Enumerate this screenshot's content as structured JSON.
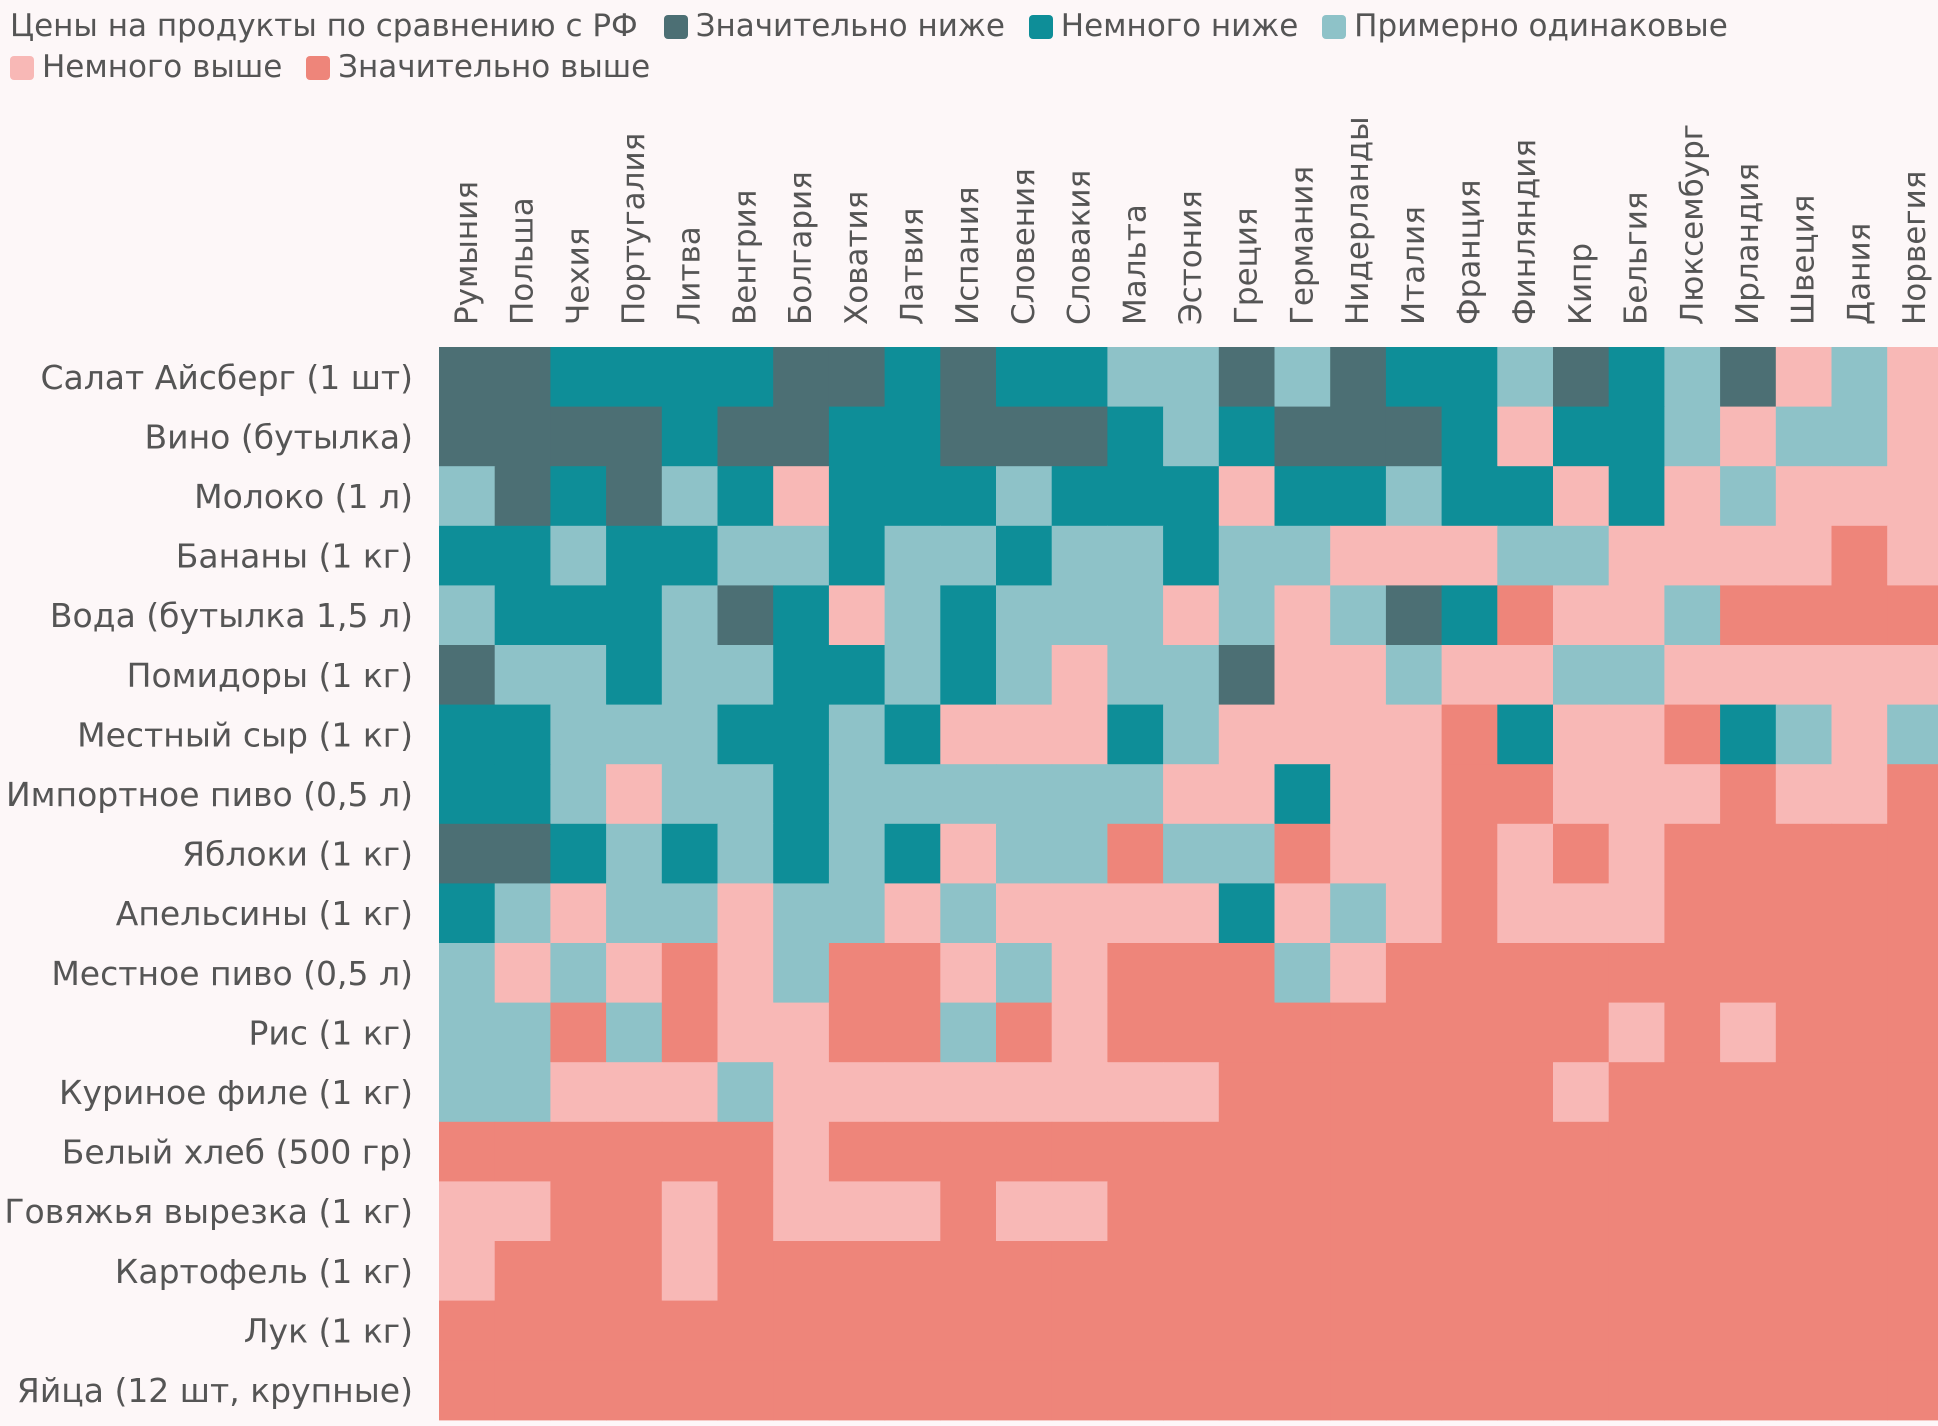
{
  "chart_data": {
    "type": "heatmap",
    "title": "Цены на продукты по сравнению с РФ",
    "legend": [
      {
        "level": 0,
        "label": "Значительно ниже",
        "color": "#4c6f74"
      },
      {
        "level": 1,
        "label": "Немного ниже",
        "color": "#0e8e98"
      },
      {
        "level": 2,
        "label": "Примерно одинаковые",
        "color": "#8ec2c8"
      },
      {
        "level": 3,
        "label": "Немного выше",
        "color": "#f8b8b6"
      },
      {
        "level": 4,
        "label": "Значительно выше",
        "color": "#ee857a"
      }
    ],
    "x": [
      "Румыния",
      "Польша",
      "Чехия",
      "Португалия",
      "Литва",
      "Венгрия",
      "Болгария",
      "Ховатия",
      "Латвия",
      "Испания",
      "Словения",
      "Словакия",
      "Мальта",
      "Эстония",
      "Греция",
      "Германия",
      "Нидерланды",
      "Италия",
      "Франция",
      "Финляндия",
      "Кипр",
      "Бельгия",
      "Люксембург",
      "Ирландия",
      "Швеция",
      "Дания",
      "Норвегия"
    ],
    "y": [
      "Салат Айсберг (1 шт)",
      "Вино (бутылка)",
      "Молоко (1 л)",
      "Бананы (1 кг)",
      "Вода (бутылка 1,5 л)",
      "Помидоры (1 кг)",
      "Местный сыр (1 кг)",
      "Импортное пиво (0,5 л)",
      "Яблоки (1 кг)",
      "Апельсины (1 кг)",
      "Местное пиво (0,5 л)",
      "Рис (1 кг)",
      "Куриное филе (1 кг)",
      "Белый хлеб (500 гр)",
      "Говяжья вырезка (1 кг)",
      "Картофель (1 кг)",
      "Лук (1 кг)",
      "Яйца (12 шт, крупные)"
    ],
    "values": [
      [
        0,
        0,
        1,
        1,
        1,
        1,
        0,
        0,
        1,
        0,
        1,
        1,
        2,
        2,
        0,
        2,
        0,
        1,
        1,
        2,
        0,
        1,
        2,
        0,
        3,
        2,
        3
      ],
      [
        0,
        0,
        0,
        0,
        1,
        0,
        0,
        1,
        1,
        0,
        0,
        0,
        1,
        2,
        1,
        0,
        0,
        0,
        1,
        3,
        1,
        1,
        2,
        3,
        2,
        2,
        3
      ],
      [
        2,
        0,
        1,
        0,
        2,
        1,
        3,
        1,
        1,
        1,
        2,
        1,
        1,
        1,
        3,
        1,
        1,
        2,
        1,
        1,
        3,
        1,
        3,
        2,
        3,
        3,
        3
      ],
      [
        1,
        1,
        2,
        1,
        1,
        2,
        2,
        1,
        2,
        2,
        1,
        2,
        2,
        1,
        2,
        2,
        3,
        3,
        3,
        2,
        2,
        3,
        3,
        3,
        3,
        4,
        3
      ],
      [
        2,
        1,
        1,
        1,
        2,
        0,
        1,
        3,
        2,
        1,
        2,
        2,
        2,
        3,
        2,
        3,
        2,
        0,
        1,
        4,
        3,
        3,
        2,
        4,
        4,
        4,
        4
      ],
      [
        0,
        2,
        2,
        1,
        2,
        2,
        1,
        1,
        2,
        1,
        2,
        3,
        2,
        2,
        0,
        3,
        3,
        2,
        3,
        3,
        2,
        2,
        3,
        3,
        3,
        3,
        3
      ],
      [
        1,
        1,
        2,
        2,
        2,
        1,
        1,
        2,
        1,
        3,
        3,
        3,
        1,
        2,
        3,
        3,
        3,
        3,
        4,
        1,
        3,
        3,
        4,
        1,
        2,
        3,
        2
      ],
      [
        1,
        1,
        2,
        3,
        2,
        2,
        1,
        2,
        2,
        2,
        2,
        2,
        2,
        3,
        3,
        1,
        3,
        3,
        4,
        4,
        3,
        3,
        3,
        4,
        3,
        3,
        4
      ],
      [
        0,
        0,
        1,
        2,
        1,
        2,
        1,
        2,
        1,
        3,
        2,
        2,
        4,
        2,
        2,
        4,
        3,
        3,
        4,
        3,
        4,
        3,
        4,
        4,
        4,
        4,
        4
      ],
      [
        1,
        2,
        3,
        2,
        2,
        3,
        2,
        2,
        3,
        2,
        3,
        3,
        3,
        3,
        1,
        3,
        2,
        3,
        4,
        3,
        3,
        3,
        4,
        4,
        4,
        4,
        4
      ],
      [
        2,
        3,
        2,
        3,
        4,
        3,
        2,
        4,
        4,
        3,
        2,
        3,
        4,
        4,
        4,
        2,
        3,
        4,
        4,
        4,
        4,
        4,
        4,
        4,
        4,
        4,
        4
      ],
      [
        2,
        2,
        4,
        2,
        4,
        3,
        3,
        4,
        4,
        2,
        4,
        3,
        4,
        4,
        4,
        4,
        4,
        4,
        4,
        4,
        4,
        3,
        4,
        3,
        4,
        4,
        4
      ],
      [
        2,
        2,
        3,
        3,
        3,
        2,
        3,
        3,
        3,
        3,
        3,
        3,
        3,
        3,
        4,
        4,
        4,
        4,
        4,
        4,
        3,
        4,
        4,
        4,
        4,
        4,
        4
      ],
      [
        4,
        4,
        4,
        4,
        4,
        4,
        3,
        4,
        4,
        4,
        4,
        4,
        4,
        4,
        4,
        4,
        4,
        4,
        4,
        4,
        4,
        4,
        4,
        4,
        4,
        4,
        4
      ],
      [
        3,
        3,
        4,
        4,
        3,
        4,
        3,
        3,
        3,
        4,
        3,
        3,
        4,
        4,
        4,
        4,
        4,
        4,
        4,
        4,
        4,
        4,
        4,
        4,
        4,
        4,
        4
      ],
      [
        3,
        4,
        4,
        4,
        3,
        4,
        4,
        4,
        4,
        4,
        4,
        4,
        4,
        4,
        4,
        4,
        4,
        4,
        4,
        4,
        4,
        4,
        4,
        4,
        4,
        4,
        4
      ],
      [
        4,
        4,
        4,
        4,
        4,
        4,
        4,
        4,
        4,
        4,
        4,
        4,
        4,
        4,
        4,
        4,
        4,
        4,
        4,
        4,
        4,
        4,
        4,
        4,
        4,
        4,
        4
      ],
      [
        4,
        4,
        4,
        4,
        4,
        4,
        4,
        4,
        4,
        4,
        4,
        4,
        4,
        4,
        4,
        4,
        4,
        4,
        4,
        4,
        4,
        4,
        4,
        4,
        4,
        4,
        4
      ]
    ],
    "grid": false,
    "legend_placement": "top"
  }
}
